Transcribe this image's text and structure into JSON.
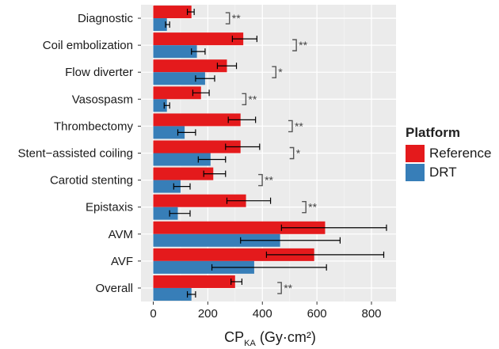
{
  "chart_data": {
    "type": "bar",
    "orientation": "horizontal",
    "categories": [
      "Diagnostic",
      "Coil embolization",
      "Flow diverter",
      "Vasospasm",
      "Thrombectomy",
      "Stent−assisted coiling",
      "Carotid stenting",
      "Epistaxis",
      "AVM",
      "AVF",
      "Overall"
    ],
    "series": [
      {
        "name": "Reference",
        "color": "#e41a1c",
        "values": [
          140,
          330,
          270,
          175,
          320,
          320,
          220,
          340,
          630,
          590,
          300
        ],
        "error": [
          [
            125,
            150
          ],
          [
            290,
            380
          ],
          [
            235,
            305
          ],
          [
            145,
            205
          ],
          [
            275,
            375
          ],
          [
            265,
            390
          ],
          [
            185,
            265
          ],
          [
            270,
            430
          ],
          [
            470,
            855
          ],
          [
            415,
            845
          ],
          [
            285,
            325
          ]
        ]
      },
      {
        "name": "DRT",
        "color": "#377eb8",
        "values": [
          50,
          160,
          190,
          50,
          115,
          210,
          100,
          90,
          465,
          370,
          140
        ],
        "error": [
          [
            45,
            60
          ],
          [
            140,
            190
          ],
          [
            155,
            225
          ],
          [
            40,
            60
          ],
          [
            90,
            155
          ],
          [
            165,
            265
          ],
          [
            75,
            135
          ],
          [
            60,
            135
          ],
          [
            320,
            685
          ],
          [
            215,
            635
          ],
          [
            125,
            155
          ]
        ]
      }
    ],
    "significance": [
      "**",
      "**",
      "*",
      "**",
      "**",
      "*",
      "**",
      "**",
      "",
      "",
      "**"
    ],
    "significance_x": [
      265,
      510,
      435,
      325,
      495,
      500,
      385,
      545,
      null,
      null,
      455
    ],
    "xlabel": "CP",
    "xlabel_sub": "KA",
    "xlabel_unit": "(Gy·cm²)",
    "xticks": [
      0,
      200,
      400,
      600,
      800
    ],
    "xlim": [
      -45,
      890
    ],
    "legend_title": "Platform",
    "legend_position": "right",
    "grid": true,
    "background": "#ebebeb"
  }
}
